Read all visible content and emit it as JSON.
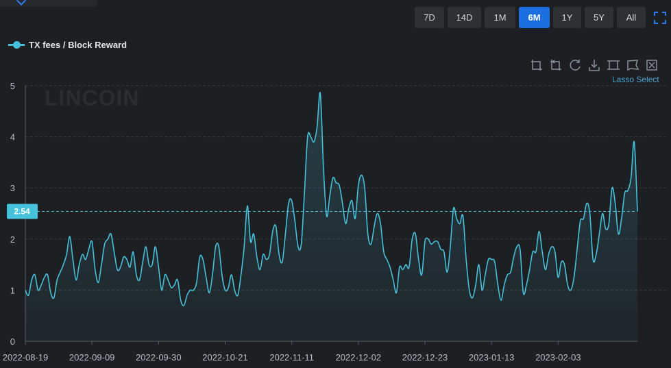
{
  "range_buttons": [
    {
      "label": "7D",
      "active": false
    },
    {
      "label": "14D",
      "active": false
    },
    {
      "label": "1M",
      "active": false
    },
    {
      "label": "6M",
      "active": true
    },
    {
      "label": "1Y",
      "active": false
    },
    {
      "label": "5Y",
      "active": false
    },
    {
      "label": "All",
      "active": false
    }
  ],
  "toolbox": {
    "icons": [
      "zoom-icon",
      "zoom-reset-icon",
      "restore-icon",
      "download-icon",
      "rect-select-icon",
      "lasso-select-icon",
      "clear-select-icon"
    ],
    "hint": "Lasso Select"
  },
  "watermark": "LINCOIN",
  "colors": {
    "series": "#45c1dc",
    "active": "#1c6fe0",
    "background": "#1e1f22"
  },
  "chart_data": {
    "type": "line",
    "title": "",
    "series": [
      {
        "name": "TX fees / Block Reward"
      }
    ],
    "ylim": [
      0,
      5
    ],
    "yticks": [
      "0",
      "1",
      "2",
      "3",
      "4",
      "5"
    ],
    "xticks": [
      "2022-08-19",
      "2022-09-09",
      "2022-09-30",
      "2022-10-21",
      "2022-11-11",
      "2022-12-02",
      "2022-12-23",
      "2023-01-13",
      "2023-02-03"
    ],
    "current_value": "2.54",
    "grid": true,
    "x_start": "2022-08-19",
    "values": [
      1.0,
      0.9,
      1.2,
      1.3,
      1.0,
      1.1,
      1.25,
      1.3,
      0.95,
      0.85,
      1.2,
      1.35,
      1.5,
      1.7,
      2.05,
      1.6,
      1.2,
      1.5,
      1.7,
      1.6,
      1.8,
      1.95,
      1.4,
      1.15,
      1.5,
      1.9,
      2.0,
      2.1,
      1.75,
      1.4,
      1.45,
      1.65,
      1.6,
      1.45,
      1.75,
      1.3,
      1.2,
      1.55,
      1.85,
      1.5,
      1.5,
      1.85,
      1.45,
      1.0,
      1.3,
      1.2,
      1.05,
      1.1,
      1.2,
      0.8,
      0.7,
      0.9,
      1.0,
      1.0,
      1.15,
      1.65,
      1.6,
      1.25,
      0.95,
      1.3,
      1.85,
      1.85,
      1.3,
      1.0,
      1.05,
      1.3,
      1.0,
      0.9,
      1.3,
      1.85,
      2.65,
      1.95,
      2.1,
      1.65,
      1.4,
      1.7,
      1.6,
      1.7,
      2.15,
      2.25,
      1.7,
      1.55,
      2.1,
      2.7,
      2.75,
      2.35,
      1.85,
      1.9,
      2.9,
      4.0,
      4.0,
      3.9,
      4.2,
      4.85,
      3.4,
      2.45,
      2.85,
      3.2,
      3.1,
      3.05,
      2.7,
      2.3,
      2.6,
      2.75,
      2.4,
      3.05,
      3.25,
      3.0,
      2.1,
      1.9,
      2.25,
      2.5,
      2.3,
      1.75,
      1.6,
      1.45,
      1.2,
      0.95,
      1.45,
      1.4,
      1.5,
      1.45,
      2.0,
      2.1,
      1.6,
      1.3,
      1.95,
      2.0,
      1.9,
      1.95,
      1.95,
      1.8,
      1.75,
      1.35,
      1.85,
      2.6,
      2.4,
      2.3,
      2.45,
      1.6,
      1.0,
      0.85,
      1.1,
      1.5,
      1.0,
      1.3,
      1.6,
      1.6,
      1.55,
      1.1,
      0.8,
      1.1,
      1.3,
      1.35,
      1.65,
      1.85,
      1.8,
      0.95,
      1.1,
      1.4,
      1.75,
      1.75,
      2.15,
      1.75,
      1.4,
      1.7,
      1.85,
      1.75,
      1.25,
      1.55,
      1.5,
      1.1,
      1.0,
      1.25,
      1.8,
      2.35,
      2.4,
      2.7,
      2.5,
      1.6,
      1.7,
      2.1,
      2.5,
      2.2,
      2.3,
      3.0,
      2.7,
      2.1,
      2.4,
      2.9,
      2.95,
      3.2,
      3.9,
      2.54
    ]
  }
}
